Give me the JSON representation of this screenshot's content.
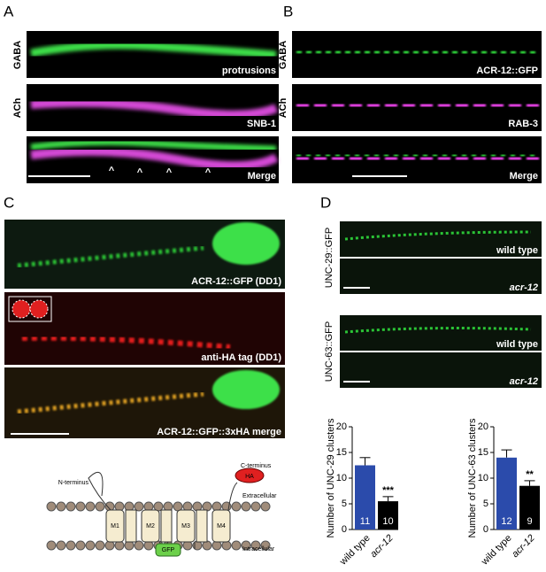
{
  "panels": {
    "A": {
      "label": "A",
      "rows": [
        "GABA",
        "ACh"
      ],
      "images": [
        "protrusions",
        "SNB-1",
        "Merge"
      ],
      "arrowheads": [
        "^",
        "^",
        "^",
        "^"
      ]
    },
    "B": {
      "label": "B",
      "rows": [
        "GABA",
        "ACh"
      ],
      "images": [
        "ACR-12::GFP",
        "RAB-3",
        "Merge"
      ]
    },
    "C": {
      "label": "C",
      "images": [
        "ACR-12::GFP (DD1)",
        "anti-HA tag (DD1)",
        "ACR-12::GFP::3xHA merge"
      ]
    },
    "D": {
      "label": "D",
      "rows": [
        "UNC-29::GFP",
        "UNC-63::GFP"
      ],
      "images": [
        "wild type",
        "acr-12",
        "wild type",
        "acr-12"
      ]
    }
  },
  "diagram": {
    "n_terminus": "N-terminus",
    "c_terminus": "C-terminus",
    "tag": "HA",
    "extracellular": "Extracellular",
    "intracellular": "Intracellular",
    "segments": [
      "M1",
      "M2",
      "M3",
      "M4"
    ],
    "reporter": "GFP"
  },
  "chart_data": [
    {
      "type": "bar",
      "y_label": "Number of UNC-29 clusters",
      "categories": [
        "wild type",
        "acr-12"
      ],
      "values": [
        12.5,
        5.5
      ],
      "errors": [
        1.5,
        0.9
      ],
      "n": [
        11,
        10
      ],
      "annotation": "***",
      "colors": [
        "#2b4bab",
        "#000000"
      ],
      "ylim": [
        0,
        20
      ],
      "yticks": [
        0,
        5,
        10,
        15,
        20
      ]
    },
    {
      "type": "bar",
      "y_label": "Number of UNC-63 clusters",
      "categories": [
        "wild type",
        "acr-12"
      ],
      "values": [
        14,
        8.5
      ],
      "errors": [
        1.5,
        1.0
      ],
      "n": [
        12,
        9
      ],
      "annotation": "**",
      "colors": [
        "#2b4bab",
        "#000000"
      ],
      "ylim": [
        0,
        20
      ],
      "yticks": [
        0,
        5,
        10,
        15,
        20
      ]
    }
  ]
}
